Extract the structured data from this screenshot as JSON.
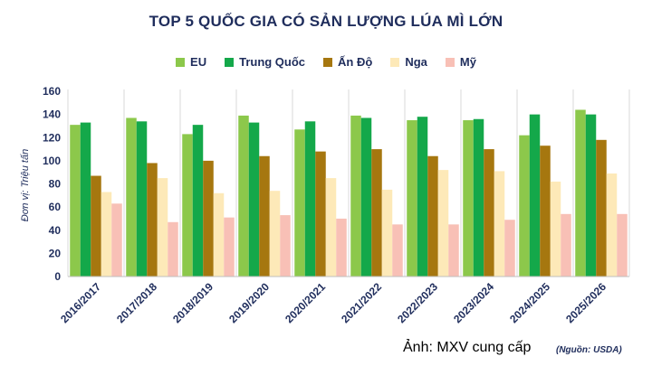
{
  "chart_data": {
    "type": "bar",
    "title": "TOP 5 QUỐC GIA CÓ SẢN LƯỢNG LÚA MÌ LỚN",
    "ylabel": "Đơn vị: Triệu tấn",
    "xlabel": "",
    "ylim": [
      0,
      160
    ],
    "yticks": [
      0,
      20,
      40,
      60,
      80,
      100,
      120,
      140,
      160
    ],
    "categories": [
      "2016/2017",
      "2017/2018",
      "2018/2019",
      "2019/2020",
      "2020/2021",
      "2021/2022",
      "2022/2023",
      "2023/2024",
      "2024/2025",
      "2025/2026"
    ],
    "series": [
      {
        "name": "EU",
        "color": "#8cc84b",
        "values": [
          131,
          137,
          123,
          139,
          127,
          139,
          135,
          135,
          122,
          144
        ]
      },
      {
        "name": "Trung Quốc",
        "color": "#14a84a",
        "values": [
          133,
          134,
          131,
          133,
          134,
          137,
          138,
          136,
          140,
          140
        ]
      },
      {
        "name": "Ấn Độ",
        "color": "#a6770f",
        "values": [
          87,
          98,
          100,
          104,
          108,
          110,
          104,
          110,
          113,
          118
        ]
      },
      {
        "name": "Nga",
        "color": "#fde9b8",
        "values": [
          73,
          85,
          72,
          74,
          85,
          75,
          92,
          91,
          82,
          89
        ]
      },
      {
        "name": "Mỹ",
        "color": "#f8c0b6",
        "values": [
          63,
          47,
          51,
          53,
          50,
          45,
          45,
          49,
          54,
          54
        ]
      }
    ],
    "legend_position": "top-center",
    "grid": false
  },
  "caption": "Ảnh: MXV cung cấp",
  "source": "(Nguồn: USDA)"
}
